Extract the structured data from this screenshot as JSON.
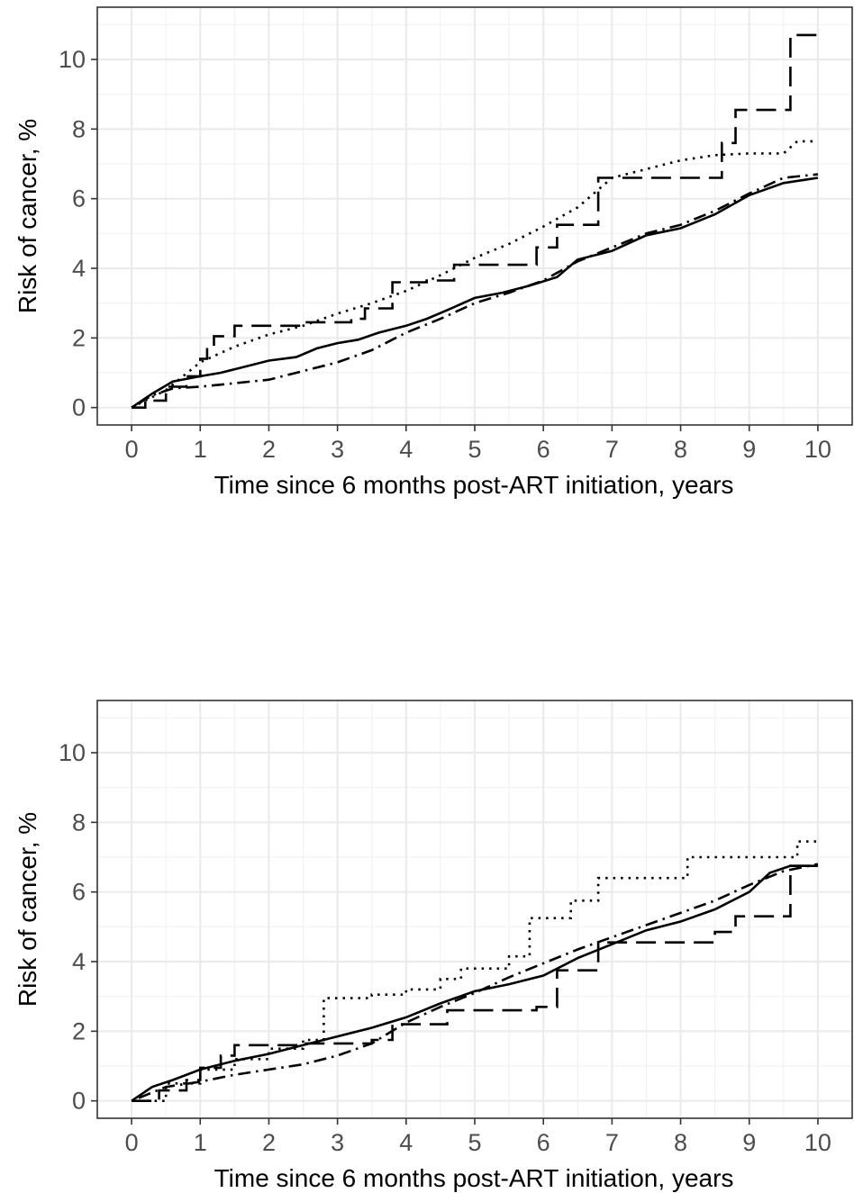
{
  "chart_data": [
    {
      "type": "line",
      "title": "",
      "xlabel": "Time since 6 months post-ART initiation, years",
      "ylabel": "Risk of cancer, %",
      "xlim": [
        -0.5,
        10.5
      ],
      "ylim": [
        -0.5,
        11.5
      ],
      "x_ticks": [
        "0",
        "1",
        "2",
        "3",
        "4",
        "5",
        "6",
        "7",
        "8",
        "9",
        "10"
      ],
      "y_ticks": [
        "0",
        "2",
        "4",
        "6",
        "8",
        "10"
      ],
      "grid": true,
      "legend": "none",
      "series": [
        {
          "linestyle": "solid",
          "step": false,
          "points": [
            [
              0,
              0
            ],
            [
              0.3,
              0.4
            ],
            [
              0.6,
              0.75
            ],
            [
              1.0,
              0.9
            ],
            [
              1.3,
              1.0
            ],
            [
              1.6,
              1.15
            ],
            [
              2.0,
              1.35
            ],
            [
              2.4,
              1.45
            ],
            [
              2.7,
              1.7
            ],
            [
              3.0,
              1.85
            ],
            [
              3.3,
              1.95
            ],
            [
              3.6,
              2.15
            ],
            [
              4.0,
              2.35
            ],
            [
              4.3,
              2.55
            ],
            [
              4.6,
              2.8
            ],
            [
              5.0,
              3.15
            ],
            [
              5.4,
              3.3
            ],
            [
              5.8,
              3.5
            ],
            [
              6.2,
              3.75
            ],
            [
              6.5,
              4.25
            ],
            [
              7.0,
              4.5
            ],
            [
              7.5,
              4.95
            ],
            [
              8.0,
              5.15
            ],
            [
              8.5,
              5.55
            ],
            [
              9.0,
              6.1
            ],
            [
              9.5,
              6.45
            ],
            [
              10.0,
              6.6
            ]
          ]
        },
        {
          "linestyle": "dashed",
          "step": true,
          "points": [
            [
              0,
              0
            ],
            [
              0.2,
              0.2
            ],
            [
              0.5,
              0.6
            ],
            [
              0.8,
              0.9
            ],
            [
              1.0,
              1.4
            ],
            [
              1.1,
              1.75
            ],
            [
              1.2,
              2.05
            ],
            [
              1.5,
              2.35
            ],
            [
              2.5,
              2.45
            ],
            [
              3.2,
              2.55
            ],
            [
              3.4,
              2.85
            ],
            [
              3.8,
              3.6
            ],
            [
              4.3,
              3.65
            ],
            [
              4.7,
              4.1
            ],
            [
              5.9,
              4.6
            ],
            [
              6.2,
              5.25
            ],
            [
              6.8,
              6.6
            ],
            [
              8.6,
              7.6
            ],
            [
              8.8,
              8.55
            ],
            [
              9.6,
              10.7
            ],
            [
              10.0,
              10.7
            ]
          ]
        },
        {
          "linestyle": "dotted",
          "step": false,
          "points": [
            [
              0,
              0
            ],
            [
              0.5,
              0.5
            ],
            [
              1.0,
              1.3
            ],
            [
              1.5,
              1.75
            ],
            [
              2.0,
              2.1
            ],
            [
              2.5,
              2.35
            ],
            [
              3.0,
              2.7
            ],
            [
              3.5,
              3.0
            ],
            [
              4.0,
              3.35
            ],
            [
              4.5,
              3.8
            ],
            [
              5.0,
              4.3
            ],
            [
              5.5,
              4.7
            ],
            [
              6.0,
              5.2
            ],
            [
              6.5,
              5.75
            ],
            [
              7.0,
              6.6
            ],
            [
              7.5,
              6.85
            ],
            [
              8.0,
              7.1
            ],
            [
              8.5,
              7.25
            ],
            [
              9.0,
              7.3
            ],
            [
              9.5,
              7.3
            ],
            [
              9.7,
              7.65
            ],
            [
              10.0,
              7.65
            ]
          ]
        },
        {
          "linestyle": "dotdash",
          "step": false,
          "points": [
            [
              0,
              0
            ],
            [
              0.3,
              0.35
            ],
            [
              0.6,
              0.55
            ],
            [
              1.0,
              0.6
            ],
            [
              1.5,
              0.7
            ],
            [
              2.0,
              0.8
            ],
            [
              2.5,
              1.05
            ],
            [
              3.0,
              1.3
            ],
            [
              3.5,
              1.65
            ],
            [
              4.0,
              2.15
            ],
            [
              4.5,
              2.55
            ],
            [
              5.0,
              3.0
            ],
            [
              5.5,
              3.3
            ],
            [
              6.0,
              3.65
            ],
            [
              6.5,
              4.2
            ],
            [
              7.0,
              4.6
            ],
            [
              7.5,
              5.0
            ],
            [
              8.0,
              5.25
            ],
            [
              8.5,
              5.65
            ],
            [
              9.0,
              6.15
            ],
            [
              9.5,
              6.6
            ],
            [
              10.0,
              6.7
            ]
          ]
        }
      ]
    },
    {
      "type": "line",
      "title": "",
      "xlabel": "Time since 6 months post-ART initiation, years",
      "ylabel": "Risk of cancer, %",
      "xlim": [
        -0.5,
        10.5
      ],
      "ylim": [
        -0.5,
        11.5
      ],
      "x_ticks": [
        "0",
        "1",
        "2",
        "3",
        "4",
        "5",
        "6",
        "7",
        "8",
        "9",
        "10"
      ],
      "y_ticks": [
        "0",
        "2",
        "4",
        "6",
        "8",
        "10"
      ],
      "grid": true,
      "legend": "none",
      "series": [
        {
          "linestyle": "solid",
          "step": false,
          "points": [
            [
              0,
              0
            ],
            [
              0.3,
              0.4
            ],
            [
              0.6,
              0.6
            ],
            [
              1.0,
              0.9
            ],
            [
              1.5,
              1.15
            ],
            [
              2.0,
              1.35
            ],
            [
              2.5,
              1.6
            ],
            [
              3.0,
              1.85
            ],
            [
              3.5,
              2.1
            ],
            [
              4.0,
              2.4
            ],
            [
              4.5,
              2.8
            ],
            [
              5.0,
              3.15
            ],
            [
              5.5,
              3.35
            ],
            [
              6.0,
              3.6
            ],
            [
              6.5,
              4.1
            ],
            [
              7.0,
              4.5
            ],
            [
              7.5,
              4.9
            ],
            [
              8.0,
              5.15
            ],
            [
              8.5,
              5.5
            ],
            [
              9.0,
              6.0
            ],
            [
              9.3,
              6.55
            ],
            [
              9.6,
              6.75
            ],
            [
              10.0,
              6.75
            ]
          ]
        },
        {
          "linestyle": "dashed",
          "step": true,
          "points": [
            [
              0,
              0
            ],
            [
              0.4,
              0.3
            ],
            [
              0.8,
              0.6
            ],
            [
              1.0,
              0.95
            ],
            [
              1.3,
              1.3
            ],
            [
              1.5,
              1.6
            ],
            [
              2.5,
              1.65
            ],
            [
              3.5,
              1.75
            ],
            [
              3.8,
              2.2
            ],
            [
              4.6,
              2.6
            ],
            [
              5.9,
              2.7
            ],
            [
              6.2,
              3.75
            ],
            [
              6.8,
              4.55
            ],
            [
              8.5,
              4.85
            ],
            [
              8.8,
              5.3
            ],
            [
              9.6,
              6.75
            ],
            [
              10.0,
              6.75
            ]
          ]
        },
        {
          "linestyle": "dotted",
          "step": true,
          "points": [
            [
              0,
              0
            ],
            [
              0.5,
              0.5
            ],
            [
              1.0,
              0.9
            ],
            [
              1.5,
              1.2
            ],
            [
              2.0,
              1.5
            ],
            [
              2.5,
              1.75
            ],
            [
              2.8,
              2.95
            ],
            [
              3.5,
              3.05
            ],
            [
              4.0,
              3.2
            ],
            [
              4.5,
              3.5
            ],
            [
              4.8,
              3.8
            ],
            [
              5.5,
              4.15
            ],
            [
              5.8,
              5.25
            ],
            [
              6.4,
              5.75
            ],
            [
              6.8,
              6.4
            ],
            [
              8.1,
              7.0
            ],
            [
              9.7,
              7.45
            ],
            [
              10.0,
              7.45
            ]
          ]
        },
        {
          "linestyle": "dotdash",
          "step": false,
          "points": [
            [
              0,
              0
            ],
            [
              0.5,
              0.4
            ],
            [
              1.0,
              0.55
            ],
            [
              1.5,
              0.75
            ],
            [
              2.0,
              0.9
            ],
            [
              2.5,
              1.05
            ],
            [
              3.0,
              1.3
            ],
            [
              3.5,
              1.65
            ],
            [
              4.0,
              2.25
            ],
            [
              4.5,
              2.7
            ],
            [
              5.0,
              3.1
            ],
            [
              5.5,
              3.55
            ],
            [
              6.0,
              3.95
            ],
            [
              6.5,
              4.35
            ],
            [
              7.0,
              4.7
            ],
            [
              7.5,
              5.05
            ],
            [
              8.0,
              5.4
            ],
            [
              8.5,
              5.75
            ],
            [
              9.0,
              6.2
            ],
            [
              9.5,
              6.6
            ],
            [
              10.0,
              6.8
            ]
          ]
        }
      ]
    }
  ]
}
